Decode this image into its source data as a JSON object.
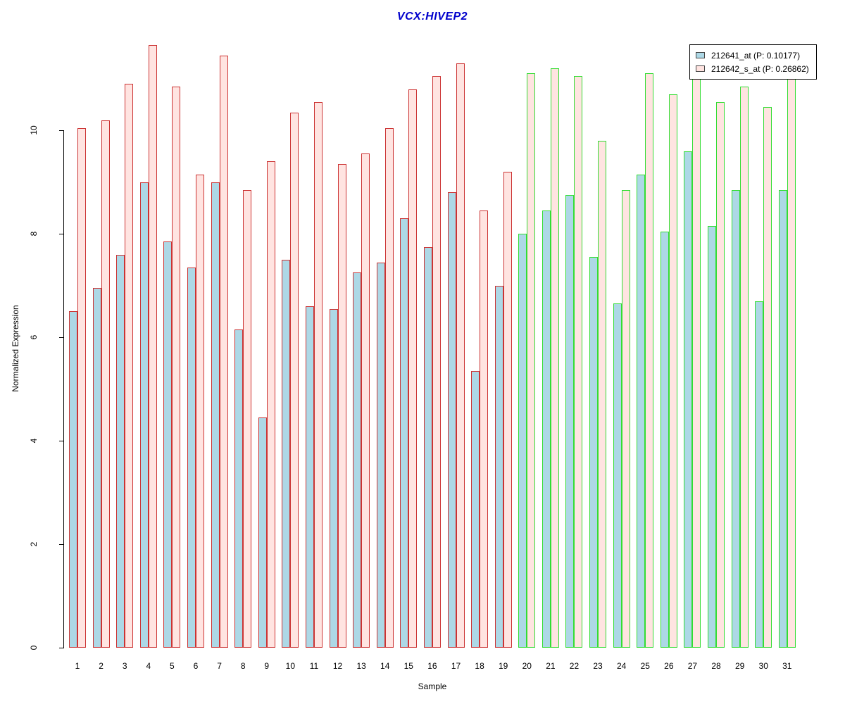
{
  "title": {
    "text": "VCX:HIVEP2",
    "color": "#0000CC"
  },
  "axes": {
    "x_label": "Sample",
    "y_label": "Normalized Expression",
    "y_ticks": [
      0,
      2,
      4,
      6,
      8,
      10
    ]
  },
  "legend": {
    "items": [
      {
        "label": "212641_at (P: 0.10177)",
        "fill": "#ADD8E6"
      },
      {
        "label": "212642_s_at (P: 0.26862)",
        "fill": "#FFE4E1"
      }
    ]
  },
  "chart_data": {
    "type": "bar",
    "title": "VCX:HIVEP2",
    "xlabel": "Sample",
    "ylabel": "Normalized Expression",
    "ylim": [
      0,
      11.8
    ],
    "yticks": [
      0,
      2,
      4,
      6,
      8,
      10
    ],
    "grid": false,
    "legend_position": "top-right",
    "categories": [
      1,
      2,
      3,
      4,
      5,
      6,
      7,
      8,
      9,
      10,
      11,
      12,
      13,
      14,
      15,
      16,
      17,
      18,
      19,
      20,
      21,
      22,
      23,
      24,
      25,
      26,
      27,
      28,
      29,
      30,
      31
    ],
    "series": [
      {
        "name": "212641_at (P: 0.10177)",
        "fill_color": "#ADD8E6",
        "values": [
          6.5,
          6.95,
          7.6,
          9.0,
          7.85,
          7.35,
          9.0,
          6.15,
          4.45,
          7.5,
          6.6,
          6.55,
          7.25,
          7.45,
          8.3,
          7.75,
          8.8,
          5.35,
          7.0,
          8.0,
          8.45,
          8.75,
          7.55,
          6.65,
          9.15,
          8.05,
          9.6,
          8.15,
          8.85,
          6.7,
          8.85
        ]
      },
      {
        "name": "212642_s_at (P: 0.26862)",
        "fill_color": "#FFE4E1",
        "values": [
          10.05,
          10.2,
          10.9,
          11.65,
          10.85,
          9.15,
          11.45,
          8.85,
          9.4,
          10.35,
          10.55,
          9.35,
          9.55,
          10.05,
          10.8,
          11.05,
          11.3,
          8.45,
          9.2,
          11.1,
          11.2,
          11.05,
          9.8,
          8.85,
          11.1,
          10.7,
          11.2,
          10.55,
          10.85,
          10.45,
          11.0
        ]
      }
    ],
    "bar_outline_colors": {
      "samples_1_to_19": "#CC3333",
      "samples_20_to_31": "#33DD33"
    },
    "outline_red_last_sample": 19
  }
}
